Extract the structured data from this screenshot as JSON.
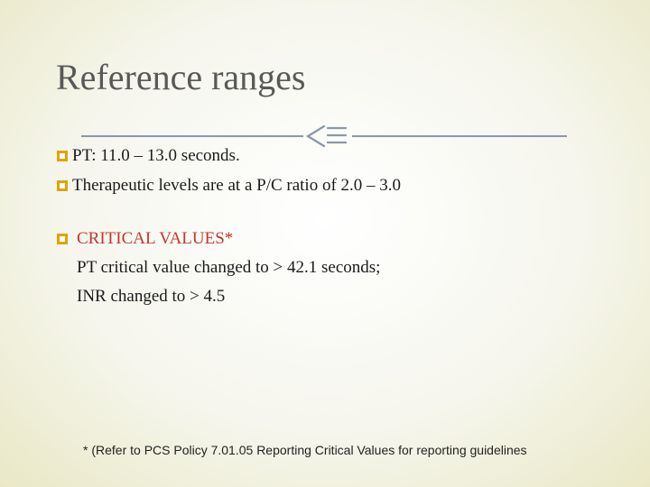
{
  "slide": {
    "title": "Reference ranges",
    "ornament_icon": "decorative-lines-icon",
    "bullet_icon": "checkbox-bullet-icon",
    "bullets": [
      {
        "text": "PT: 11.0 – 13.0 seconds."
      },
      {
        "text": "Therapeutic levels are at a P/C ratio of  2.0 – 3.0"
      }
    ],
    "critical": {
      "heading": "CRITICAL VALUES*",
      "line1": "PT critical value changed to  > 42.1 seconds;",
      "line2": "INR changed to > 4.5"
    },
    "footnote": "* (Refer to  PCS Policy 7.01.05 Reporting Critical Values for reporting guidelines"
  },
  "colors": {
    "bullet": "#e0a400",
    "critical_text": "#c0392b",
    "title": "#595959"
  }
}
